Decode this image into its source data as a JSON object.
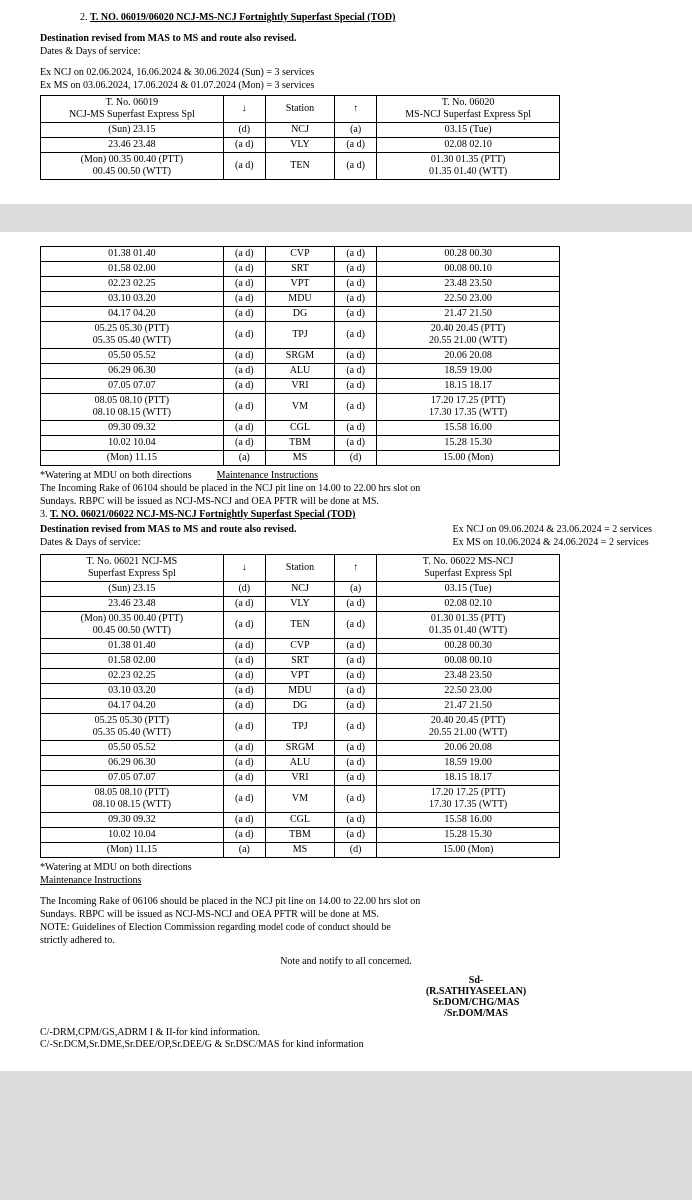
{
  "section2": {
    "number": "2.",
    "title": "T. NO. 06019/06020 NCJ-MS-NCJ Fortnightly Superfast Special (TOD)",
    "dest_line_prefix": "Destination revised from MAS to ",
    "dest_bold": "MS",
    "dest_line_suffix": " and route also revised.",
    "dates_label": "Dates & Days of service:",
    "ex1": "Ex NCJ on 02.06.2024, 16.06.2024 & 30.06.2024 (Sun) = 3 services",
    "ex2": "Ex MS on 03.06.2024, 17.06.2024 & 01.07.2024 (Mon) = 3 services"
  },
  "t1": {
    "h1a": "T. No. 06019",
    "h1b": "NCJ-MS Superfast Express Spl",
    "h2": "↓",
    "h3": "Station",
    "h4": "↑",
    "h5a": "T. No. 06020",
    "h5b": "MS-NCJ Superfast Express Spl",
    "rows": [
      {
        "l": "(Sun) 23.15",
        "a1": "(d)",
        "s": "NCJ",
        "a2": "(a)",
        "r": "03.15 (Tue)"
      },
      {
        "l": "23.46 23.48",
        "a1": "(a d)",
        "s": "VLY",
        "a2": "(a d)",
        "r": "02.08 02.10"
      },
      {
        "l": "(Mon) 00.35 00.40 (PTT)\n00.45 00.50 (WTT)",
        "a1": "(a d)",
        "s": "TEN",
        "a2": "(a d)",
        "r": "01.30 01.35 (PTT)\n01.35 01.40 (WTT)"
      }
    ]
  },
  "t2": {
    "rows": [
      {
        "l": "01.38 01.40",
        "a1": "(a d)",
        "s": "CVP",
        "a2": "(a d)",
        "r": "00.28 00.30"
      },
      {
        "l": "01.58 02.00",
        "a1": "(a d)",
        "s": "SRT",
        "a2": "(a d)",
        "r": "00.08 00.10"
      },
      {
        "l": "02.23 02.25",
        "a1": "(a d)",
        "s": "VPT",
        "a2": "(a d)",
        "r": "23.48 23.50"
      },
      {
        "l": "03.10 03.20",
        "a1": "(a d)",
        "s": "MDU",
        "a2": "(a d)",
        "r": "22.50 23.00"
      },
      {
        "l": "04.17 04.20",
        "a1": "(a d)",
        "s": "DG",
        "a2": "(a d)",
        "r": "21.47 21.50"
      },
      {
        "l": "05.25 05.30 (PTT)\n05.35 05.40 (WTT)",
        "a1": "(a d)",
        "s": "TPJ",
        "a2": "(a d)",
        "r": "20.40 20.45 (PTT)\n20.55 21.00 (WTT)"
      },
      {
        "l": "05.50 05.52",
        "a1": "(a d)",
        "s": "SRGM",
        "a2": "(a d)",
        "r": "20.06 20.08"
      },
      {
        "l": "06.29 06.30",
        "a1": "(a d)",
        "s": "ALU",
        "a2": "(a d)",
        "r": "18.59 19.00"
      },
      {
        "l": "07.05 07.07",
        "a1": "(a d)",
        "s": "VRI",
        "a2": "(a d)",
        "r": "18.15 18.17"
      },
      {
        "l": "08.05 08.10 (PTT)\n08.10 08.15 (WTT)",
        "a1": "(a d)",
        "s": "VM",
        "a2": "(a d)",
        "r": "17.20 17.25 (PTT)\n17.30 17.35 (WTT)"
      },
      {
        "l": "09.30 09.32",
        "a1": "(a d)",
        "s": "CGL",
        "a2": "(a d)",
        "r": "15.58 16.00"
      },
      {
        "l": "10.02 10.04",
        "a1": "(a d)",
        "s": "TBM",
        "a2": "(a d)",
        "r": "15.28 15.30"
      },
      {
        "l": "(Mon) 11.15",
        "a1": "(a)",
        "s": "MS",
        "a2": "(d)",
        "r": "15.00 (Mon)"
      }
    ]
  },
  "watering": "*Watering at MDU on both directions",
  "maint_header": "Maintenance Instructions",
  "maint1_line1": "The Incoming Rake of 06104 should be placed in the NCJ pit line on 14.00 to 22.00 hrs slot on",
  "maint1_line2": "Sundays. RBPC will be issued as NCJ-MS-NCJ and OEA PFTR will be done at MS.",
  "section3": {
    "number": "3.",
    "title": "T. NO. 06021/06022 NCJ-MS-NCJ Fortnightly Superfast Special (TOD)",
    "dest_line_prefix": "Destination revised from MAS to ",
    "dest_bold": "MS",
    "dest_line_suffix": " and route also revised.",
    "dates_label": "Dates & Days of service:",
    "ex1": "Ex NCJ on 09.06.2024 & 23.06.2024 = 2 services",
    "ex2": "Ex MS on 10.06.2024 & 24.06.2024   = 2 services"
  },
  "t3": {
    "h1a": "T. No. 06021 NCJ-MS",
    "h1b": "Superfast Express Spl",
    "h2": "↓",
    "h3": "Station",
    "h4": "↑",
    "h5a": "T. No. 06022 MS-NCJ",
    "h5b": "Superfast Express Spl",
    "rows": [
      {
        "l": "(Sun) 23.15",
        "a1": "(d)",
        "s": "NCJ",
        "a2": "(a)",
        "r": "03.15 (Tue)"
      },
      {
        "l": "23.46 23.48",
        "a1": "(a d)",
        "s": "VLY",
        "a2": "(a d)",
        "r": "02.08 02.10"
      },
      {
        "l": "(Mon) 00.35 00.40 (PTT)\n00.45 00.50 (WTT)",
        "a1": "(a d)",
        "s": "TEN",
        "a2": "(a d)",
        "r": "01.30 01.35 (PTT)\n01.35 01.40 (WTT)"
      },
      {
        "l": "01.38 01.40",
        "a1": "(a d)",
        "s": "CVP",
        "a2": "(a d)",
        "r": "00.28 00.30"
      },
      {
        "l": "01.58 02.00",
        "a1": "(a d)",
        "s": "SRT",
        "a2": "(a d)",
        "r": "00.08 00.10"
      },
      {
        "l": "02.23 02.25",
        "a1": "(a d)",
        "s": "VPT",
        "a2": "(a d)",
        "r": "23.48 23.50"
      },
      {
        "l": "03.10 03.20",
        "a1": "(a d)",
        "s": "MDU",
        "a2": "(a d)",
        "r": "22.50 23.00"
      },
      {
        "l": "04.17 04.20",
        "a1": "(a d)",
        "s": "DG",
        "a2": "(a d)",
        "r": "21.47 21.50"
      },
      {
        "l": "05.25 05.30 (PTT)\n05.35 05.40 (WTT)",
        "a1": "(a d)",
        "s": "TPJ",
        "a2": "(a d)",
        "r": "20.40 20.45 (PTT)\n20.55 21.00 (WTT)"
      },
      {
        "l": "05.50 05.52",
        "a1": "(a d)",
        "s": "SRGM",
        "a2": "(a d)",
        "r": "20.06 20.08"
      },
      {
        "l": "06.29 06.30",
        "a1": "(a d)",
        "s": "ALU",
        "a2": "(a d)",
        "r": "18.59 19.00"
      },
      {
        "l": "07.05 07.07",
        "a1": "(a d)",
        "s": "VRI",
        "a2": "(a d)",
        "r": "18.15 18.17"
      },
      {
        "l": "08.05 08.10 (PTT)\n08.10 08.15 (WTT)",
        "a1": "(a d)",
        "s": "VM",
        "a2": "(a d)",
        "r": "17.20 17.25 (PTT)\n17.30 17.35 (WTT)"
      },
      {
        "l": "09.30 09.32",
        "a1": "(a d)",
        "s": "CGL",
        "a2": "(a d)",
        "r": "15.58 16.00"
      },
      {
        "l": "10.02 10.04",
        "a1": "(a d)",
        "s": "TBM",
        "a2": "(a d)",
        "r": "15.28 15.30"
      },
      {
        "l": "(Mon) 11.15",
        "a1": "(a)",
        "s": "MS",
        "a2": "(d)",
        "r": "15.00 (Mon)"
      }
    ]
  },
  "maint2_line1": "The Incoming Rake of 06106 should be placed in the NCJ pit line on 14.00 to 22.00 hrs slot on",
  "maint2_line2": "Sundays. RBPC will be issued as NCJ-MS-NCJ and OEA PFTR will be done at MS.",
  "note_line1": "NOTE: Guidelines of Election Commission regarding model code of conduct should be",
  "note_line2": "strictly adhered to.",
  "notify": "Note and notify to all concerned.",
  "sign_sd": "Sd-",
  "sign_name": "(R.SATHIYASEELAN)",
  "sign_post1": "Sr.DOM/CHG/MAS",
  "sign_post2": "/Sr.DOM/MAS",
  "cc1": "C/-DRM,CPM/GS,ADRM I & II-for kind information.",
  "cc2": "C/-Sr.DCM,Sr.DME,Sr.DEE/OP,Sr.DEE/G & Sr.DSC/MAS for kind  information"
}
